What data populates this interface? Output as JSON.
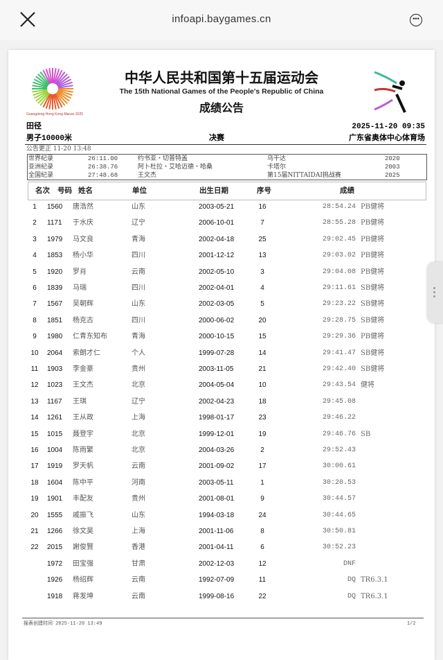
{
  "browser": {
    "url": "infoapi.baygames.cn",
    "close_icon": "close-icon",
    "more_icon": "more-icon"
  },
  "doc": {
    "title": "中华人民共和国第十五届运动会",
    "subtitle": "The 15th National Games of the People's Republic of China",
    "bulletin": "成绩公告",
    "logo_caption": "Guangdong·Hong Kong·Macao 2025",
    "sport": "田径",
    "datetime": "2025-11-20 09:35",
    "event": "男子10000米",
    "phase": "决赛",
    "venue": "广东省奥体中心体育场",
    "correction": "公告更正 11-20 13:48",
    "records": [
      {
        "type": "世界纪录",
        "mark": "26:11.00",
        "holder": "约书亚・切普特盖",
        "place": "乌干达",
        "year": "2020"
      },
      {
        "type": "亚洲纪录",
        "mark": "26:38.76",
        "holder": "阿卜杜拉・艾哈迈德・哈桑",
        "place": "卡塔尔",
        "year": "2003"
      },
      {
        "type": "全国纪录",
        "mark": "27:48.68",
        "holder": "王文杰",
        "place": "第15届NITTAIDAI挑战赛",
        "year": "2025"
      }
    ],
    "columns": {
      "rank": "名次",
      "bib": "号码",
      "name": "姓名",
      "unit": "单位",
      "dob": "出生日期",
      "seq": "序号",
      "result": "成绩"
    },
    "rows": [
      {
        "rank": "1",
        "bib": "1560",
        "name": "唐浩然",
        "unit": "山东",
        "dob": "2003-05-21",
        "seq": "16",
        "result": "28:54.24",
        "note": "PB健将"
      },
      {
        "rank": "2",
        "bib": "1171",
        "name": "于水庆",
        "unit": "辽宁",
        "dob": "2006-10-01",
        "seq": "7",
        "result": "28:55.28",
        "note": "PB健将"
      },
      {
        "rank": "3",
        "bib": "1979",
        "name": "马文良",
        "unit": "青海",
        "dob": "2002-04-18",
        "seq": "25",
        "result": "29:02.45",
        "note": "PB健将"
      },
      {
        "rank": "4",
        "bib": "1853",
        "name": "杨小华",
        "unit": "四川",
        "dob": "2001-12-12",
        "seq": "13",
        "result": "29:03.02",
        "note": "PB健将"
      },
      {
        "rank": "5",
        "bib": "1920",
        "name": "罗肖",
        "unit": "云南",
        "dob": "2002-05-10",
        "seq": "3",
        "result": "29:04.08",
        "note": "PB健将"
      },
      {
        "rank": "6",
        "bib": "1839",
        "name": "马瑞",
        "unit": "四川",
        "dob": "2002-04-01",
        "seq": "4",
        "result": "29:11.61",
        "note": "SB健将"
      },
      {
        "rank": "7",
        "bib": "1567",
        "name": "吴朝辉",
        "unit": "山东",
        "dob": "2002-03-05",
        "seq": "5",
        "result": "29:23.22",
        "note": "SB健将"
      },
      {
        "rank": "8",
        "bib": "1851",
        "name": "杨克古",
        "unit": "四川",
        "dob": "2000-06-02",
        "seq": "20",
        "result": "29:28.75",
        "note": "SB健将"
      },
      {
        "rank": "9",
        "bib": "1980",
        "name": "仁青东知布",
        "unit": "青海",
        "dob": "2000-10-15",
        "seq": "15",
        "result": "29:29.36",
        "note": "PB健将"
      },
      {
        "rank": "10",
        "bib": "2064",
        "name": "索朗才仁",
        "unit": "个人",
        "dob": "1999-07-28",
        "seq": "14",
        "result": "29:41.47",
        "note": "SB健将"
      },
      {
        "rank": "11",
        "bib": "1903",
        "name": "李金豪",
        "unit": "贵州",
        "dob": "2003-11-05",
        "seq": "21",
        "result": "29:42.40",
        "note": "SB健将"
      },
      {
        "rank": "12",
        "bib": "1023",
        "name": "王文杰",
        "unit": "北京",
        "dob": "2004-05-04",
        "seq": "10",
        "result": "29:43.54",
        "note": "健将"
      },
      {
        "rank": "13",
        "bib": "1167",
        "name": "王琪",
        "unit": "辽宁",
        "dob": "2002-04-23",
        "seq": "18",
        "result": "29:45.08",
        "note": ""
      },
      {
        "rank": "14",
        "bib": "1261",
        "name": "王从政",
        "unit": "上海",
        "dob": "1998-01-17",
        "seq": "23",
        "result": "29:46.22",
        "note": ""
      },
      {
        "rank": "15",
        "bib": "1015",
        "name": "聂登宇",
        "unit": "北京",
        "dob": "1999-12-01",
        "seq": "19",
        "result": "29:46.76",
        "note": "SB"
      },
      {
        "rank": "16",
        "bib": "1004",
        "name": "陈雨繁",
        "unit": "北京",
        "dob": "2004-03-26",
        "seq": "2",
        "result": "29:52.43",
        "note": ""
      },
      {
        "rank": "17",
        "bib": "1919",
        "name": "罗天帆",
        "unit": "云南",
        "dob": "2001-09-02",
        "seq": "17",
        "result": "30:00.61",
        "note": ""
      },
      {
        "rank": "18",
        "bib": "1604",
        "name": "陈中平",
        "unit": "河南",
        "dob": "2003-05-11",
        "seq": "1",
        "result": "30:20.53",
        "note": ""
      },
      {
        "rank": "19",
        "bib": "1901",
        "name": "丰配友",
        "unit": "贵州",
        "dob": "2001-08-01",
        "seq": "9",
        "result": "30:44.57",
        "note": ""
      },
      {
        "rank": "20",
        "bib": "1555",
        "name": "戚振飞",
        "unit": "山东",
        "dob": "1994-03-18",
        "seq": "24",
        "result": "30:44.65",
        "note": ""
      },
      {
        "rank": "21",
        "bib": "1266",
        "name": "徐文昊",
        "unit": "上海",
        "dob": "2001-11-06",
        "seq": "8",
        "result": "30:50.81",
        "note": ""
      },
      {
        "rank": "22",
        "bib": "2015",
        "name": "謝俊賢",
        "unit": "香港",
        "dob": "2001-04-11",
        "seq": "6",
        "result": "30:52.23",
        "note": ""
      },
      {
        "rank": "",
        "bib": "1972",
        "name": "田宝强",
        "unit": "甘肃",
        "dob": "2002-12-03",
        "seq": "12",
        "result": "DNF",
        "note": ""
      },
      {
        "rank": "",
        "bib": "1926",
        "name": "杨绍辉",
        "unit": "云南",
        "dob": "1992-07-09",
        "seq": "11",
        "result": "DQ",
        "note": "TR6.3.1"
      },
      {
        "rank": "",
        "bib": "1918",
        "name": "蒋发坤",
        "unit": "云南",
        "dob": "1999-08-16",
        "seq": "22",
        "result": "DQ",
        "note": "TR6.3.1"
      }
    ],
    "footer_left": "报表创建时间 2025-11-20 13:49",
    "footer_right": "1/2"
  }
}
